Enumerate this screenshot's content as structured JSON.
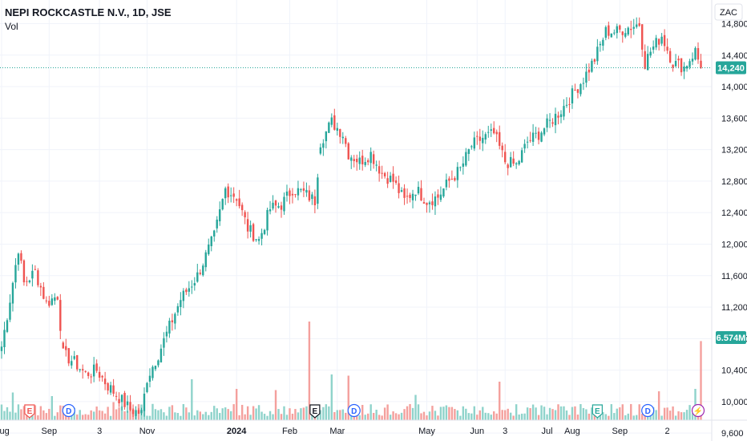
{
  "header": {
    "symbol_line": "NEPI ROCKCASTLE N.V., 1D, JSE",
    "volume_label": "Vol",
    "currency": "ZAC"
  },
  "chart_data": {
    "type": "candlestick",
    "colors": {
      "up": "#26a69a",
      "down": "#ef5350",
      "vol_up": "#8fd3cb",
      "vol_down": "#f4a09d",
      "price_line": "#26a69a",
      "grid": "#f0f3fa",
      "axis_text": "#131722"
    },
    "ylim": [
      9500,
      15100
    ],
    "y_ticks": [
      {
        "v": 14800,
        "label": "14,800"
      },
      {
        "v": 14400,
        "label": "14,400"
      },
      {
        "v": 14000,
        "label": "14,000"
      },
      {
        "v": 13600,
        "label": "13,600"
      },
      {
        "v": 13200,
        "label": "13,200"
      },
      {
        "v": 12800,
        "label": "12,800"
      },
      {
        "v": 12400,
        "label": "12,400"
      },
      {
        "v": 12000,
        "label": "12,000"
      },
      {
        "v": 11600,
        "label": "11,600"
      },
      {
        "v": 11200,
        "label": "11,200"
      },
      {
        "v": 10800,
        "label": "10,800"
      },
      {
        "v": 10400,
        "label": "10,400"
      },
      {
        "v": 10000,
        "label": "10,000"
      },
      {
        "v": 9600,
        "label": "9,600"
      }
    ],
    "x_ticks": [
      {
        "i": 0,
        "label": "Aug",
        "bold": false
      },
      {
        "i": 17,
        "label": "Sep",
        "bold": false
      },
      {
        "i": 35,
        "label": "3",
        "bold": false
      },
      {
        "i": 52,
        "label": "Nov",
        "bold": false
      },
      {
        "i": 84,
        "label": "2024",
        "bold": true
      },
      {
        "i": 103,
        "label": "Feb",
        "bold": false
      },
      {
        "i": 120,
        "label": "Mar",
        "bold": false
      },
      {
        "i": 152,
        "label": "May",
        "bold": false
      },
      {
        "i": 170,
        "label": "Jun",
        "bold": false
      },
      {
        "i": 180,
        "label": "3",
        "bold": false
      },
      {
        "i": 195,
        "label": "Jul",
        "bold": false
      },
      {
        "i": 204,
        "label": "Aug",
        "bold": false
      },
      {
        "i": 221,
        "label": "Sep",
        "bold": false
      },
      {
        "i": 238,
        "label": "2",
        "bold": false
      }
    ],
    "last_price": {
      "value": 14240,
      "label": "14,240"
    },
    "last_volume": {
      "label": "6.574M"
    },
    "events": [
      {
        "i": 10,
        "letter": "E",
        "kind": "earnings-down"
      },
      {
        "i": 24,
        "letter": "D",
        "kind": "dividend"
      },
      {
        "i": 112,
        "letter": "E",
        "kind": "earnings"
      },
      {
        "i": 126,
        "letter": "D",
        "kind": "dividend"
      },
      {
        "i": 213,
        "letter": "E",
        "kind": "earnings-up"
      },
      {
        "i": 231,
        "letter": "D",
        "kind": "dividend"
      },
      {
        "i": 249,
        "letter": "⚡",
        "kind": "split"
      }
    ],
    "anchors": [
      [
        0,
        10700
      ],
      [
        3,
        11300
      ],
      [
        6,
        11950
      ],
      [
        8,
        11500
      ],
      [
        12,
        11650
      ],
      [
        16,
        11250
      ],
      [
        20,
        11350
      ],
      [
        22,
        10600
      ],
      [
        26,
        10500
      ],
      [
        30,
        10350
      ],
      [
        34,
        10400
      ],
      [
        38,
        10200
      ],
      [
        42,
        10050
      ],
      [
        46,
        9900
      ],
      [
        50,
        9850
      ],
      [
        52,
        10300
      ],
      [
        56,
        10600
      ],
      [
        60,
        10950
      ],
      [
        64,
        11300
      ],
      [
        70,
        11600
      ],
      [
        76,
        12100
      ],
      [
        80,
        12700
      ],
      [
        84,
        12600
      ],
      [
        88,
        12200
      ],
      [
        92,
        12050
      ],
      [
        96,
        12450
      ],
      [
        100,
        12500
      ],
      [
        104,
        12700
      ],
      [
        108,
        12650
      ],
      [
        112,
        12550
      ],
      [
        114,
        13300
      ],
      [
        118,
        13550
      ],
      [
        122,
        13400
      ],
      [
        124,
        13150
      ],
      [
        128,
        13050
      ],
      [
        132,
        13150
      ],
      [
        136,
        12900
      ],
      [
        140,
        12800
      ],
      [
        144,
        12550
      ],
      [
        148,
        12700
      ],
      [
        152,
        12550
      ],
      [
        156,
        12600
      ],
      [
        160,
        12800
      ],
      [
        164,
        12950
      ],
      [
        168,
        13250
      ],
      [
        172,
        13350
      ],
      [
        176,
        13400
      ],
      [
        180,
        13050
      ],
      [
        184,
        13000
      ],
      [
        188,
        13300
      ],
      [
        192,
        13400
      ],
      [
        196,
        13550
      ],
      [
        200,
        13700
      ],
      [
        204,
        13900
      ],
      [
        208,
        14100
      ],
      [
        212,
        14350
      ],
      [
        216,
        14700
      ],
      [
        220,
        14700
      ],
      [
        224,
        14750
      ],
      [
        228,
        14800
      ],
      [
        230,
        14300
      ],
      [
        232,
        14450
      ],
      [
        236,
        14650
      ],
      [
        240,
        14300
      ],
      [
        244,
        14250
      ],
      [
        248,
        14450
      ],
      [
        250,
        14240
      ]
    ],
    "gaps": [
      [
        22,
        10750
      ],
      [
        114,
        13150
      ]
    ],
    "volume_scale_max": 12000000,
    "volume_spikes": [
      {
        "i": 4,
        "v": 2300000
      },
      {
        "i": 18,
        "v": 2000000
      },
      {
        "i": 40,
        "v": 1500000
      },
      {
        "i": 68,
        "v": 3400000
      },
      {
        "i": 84,
        "v": 2600000
      },
      {
        "i": 98,
        "v": 2500000
      },
      {
        "i": 110,
        "v": 8200000
      },
      {
        "i": 118,
        "v": 3800000
      },
      {
        "i": 124,
        "v": 3700000
      },
      {
        "i": 148,
        "v": 2100000
      },
      {
        "i": 178,
        "v": 3200000
      },
      {
        "i": 235,
        "v": 2400000
      },
      {
        "i": 248,
        "v": 2600000
      },
      {
        "i": 250,
        "v": 6574000
      }
    ]
  }
}
